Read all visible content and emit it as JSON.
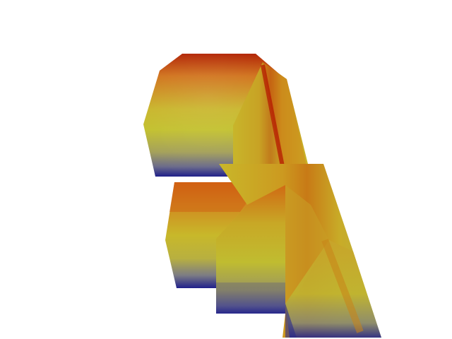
{
  "scene": {
    "background": "#ffffff",
    "colormap": {
      "low": "#1f1f8a",
      "mid_low": "#8a8a7a",
      "mid": "#c8c02a",
      "high": "#d07a18",
      "max": "#b01800"
    },
    "objects": [
      {
        "name": "upper-block",
        "shape": "beveled-box"
      },
      {
        "name": "lower-left-block",
        "shape": "beveled-box"
      },
      {
        "name": "lower-right-block",
        "shape": "beveled-box"
      },
      {
        "name": "diagonal-bar",
        "shape": "elongated-prism"
      }
    ]
  }
}
